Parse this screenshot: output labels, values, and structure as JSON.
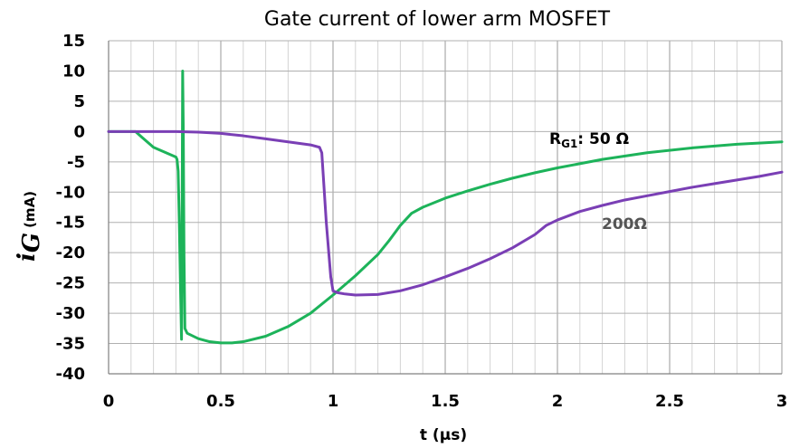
{
  "chart_data": {
    "type": "line",
    "title": "Gate current of lower arm MOSFET",
    "xlabel": "t (µs)",
    "ylabel": {
      "symbol": "i",
      "subscript": "G",
      "unit": "(mA)"
    },
    "xlim": [
      0,
      3
    ],
    "ylim": [
      -40,
      15
    ],
    "x_major_ticks": [
      0,
      0.5,
      1,
      1.5,
      2,
      2.5,
      3
    ],
    "x_tick_labels": [
      "0",
      "0.5",
      "1",
      "1.5",
      "2",
      "2.5",
      "3"
    ],
    "x_minor_step": 0.1,
    "y_ticks": [
      15,
      10,
      5,
      0,
      -5,
      -10,
      -15,
      -20,
      -25,
      -30,
      -35,
      -40
    ],
    "y_tick_labels": [
      "15",
      "10",
      "5",
      "0",
      "-5",
      "-10",
      "-15",
      "-20",
      "-25",
      "-30",
      "-35",
      "-40"
    ],
    "grid": true,
    "series": [
      {
        "name": "RG1: 50 Ω",
        "color": "#1db35a",
        "points": [
          [
            0,
            0
          ],
          [
            0.12,
            0
          ],
          [
            0.15,
            -1
          ],
          [
            0.2,
            -2.6
          ],
          [
            0.25,
            -3.4
          ],
          [
            0.3,
            -4.2
          ],
          [
            0.305,
            -4.6
          ],
          [
            0.31,
            -6.5
          ],
          [
            0.315,
            -15
          ],
          [
            0.32,
            -25
          ],
          [
            0.325,
            -34.3
          ],
          [
            0.328,
            -10
          ],
          [
            0.33,
            10
          ],
          [
            0.333,
            0
          ],
          [
            0.336,
            -20
          ],
          [
            0.34,
            -32.5
          ],
          [
            0.35,
            -33.3
          ],
          [
            0.4,
            -34.2
          ],
          [
            0.45,
            -34.7
          ],
          [
            0.5,
            -34.9
          ],
          [
            0.55,
            -34.9
          ],
          [
            0.6,
            -34.7
          ],
          [
            0.7,
            -33.8
          ],
          [
            0.8,
            -32.2
          ],
          [
            0.9,
            -30
          ],
          [
            1.0,
            -27
          ],
          [
            1.1,
            -23.8
          ],
          [
            1.2,
            -20.3
          ],
          [
            1.25,
            -18
          ],
          [
            1.3,
            -15.5
          ],
          [
            1.35,
            -13.5
          ],
          [
            1.4,
            -12.5
          ],
          [
            1.5,
            -11
          ],
          [
            1.6,
            -9.8
          ],
          [
            1.7,
            -8.7
          ],
          [
            1.8,
            -7.7
          ],
          [
            1.9,
            -6.8
          ],
          [
            2.0,
            -6
          ],
          [
            2.2,
            -4.6
          ],
          [
            2.4,
            -3.5
          ],
          [
            2.6,
            -2.7
          ],
          [
            2.8,
            -2.1
          ],
          [
            3.0,
            -1.7
          ]
        ]
      },
      {
        "name": "200Ω",
        "color": "#7a3fb5",
        "points": [
          [
            0,
            0
          ],
          [
            0.3,
            0
          ],
          [
            0.4,
            -0.1
          ],
          [
            0.5,
            -0.3
          ],
          [
            0.6,
            -0.7
          ],
          [
            0.7,
            -1.2
          ],
          [
            0.8,
            -1.7
          ],
          [
            0.9,
            -2.2
          ],
          [
            0.94,
            -2.6
          ],
          [
            0.95,
            -3.5
          ],
          [
            0.97,
            -15
          ],
          [
            0.99,
            -24
          ],
          [
            1.0,
            -26.3
          ],
          [
            1.02,
            -26.6
          ],
          [
            1.05,
            -26.8
          ],
          [
            1.1,
            -27
          ],
          [
            1.2,
            -26.9
          ],
          [
            1.3,
            -26.3
          ],
          [
            1.4,
            -25.3
          ],
          [
            1.5,
            -24
          ],
          [
            1.6,
            -22.6
          ],
          [
            1.7,
            -21
          ],
          [
            1.8,
            -19.2
          ],
          [
            1.9,
            -17
          ],
          [
            1.95,
            -15.5
          ],
          [
            2.0,
            -14.6
          ],
          [
            2.1,
            -13.2
          ],
          [
            2.2,
            -12.2
          ],
          [
            2.3,
            -11.3
          ],
          [
            2.4,
            -10.6
          ],
          [
            2.5,
            -9.9
          ],
          [
            2.6,
            -9.2
          ],
          [
            2.7,
            -8.6
          ],
          [
            2.8,
            -8
          ],
          [
            2.9,
            -7.4
          ],
          [
            3.0,
            -6.7
          ]
        ]
      }
    ],
    "annotations": [
      {
        "series": 0,
        "main": "R",
        "sub": "G1",
        "rest": ": 50 Ω",
        "color": "#000000"
      },
      {
        "series": 1,
        "text": "200Ω",
        "color": "#555555"
      }
    ]
  }
}
